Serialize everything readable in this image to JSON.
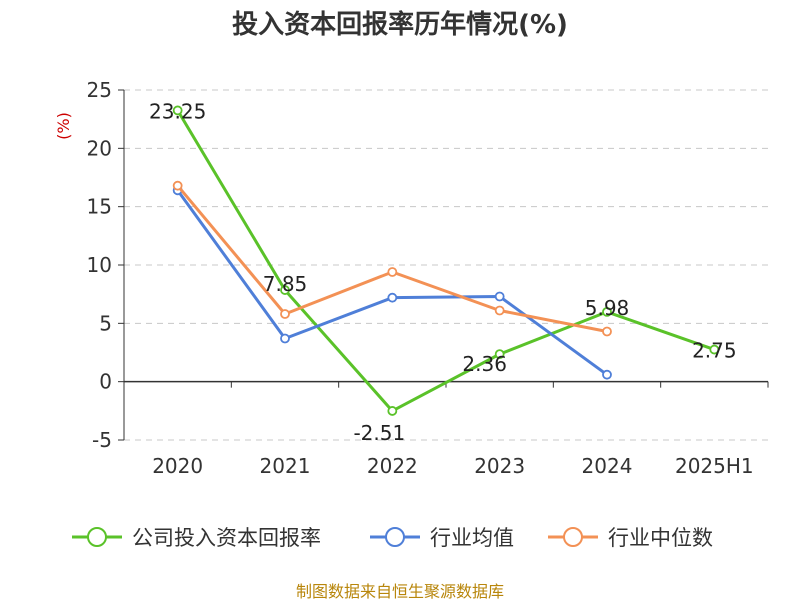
{
  "chart_data": {
    "type": "line",
    "title": "投入资本回报率历年情况(%)",
    "ylabel": "(%)",
    "xlabel": "",
    "categories": [
      "2020",
      "2021",
      "2022",
      "2023",
      "2024",
      "2025H1"
    ],
    "ylim": [
      -5,
      25
    ],
    "yticks": [
      -5,
      0,
      5,
      10,
      15,
      20,
      25
    ],
    "grid": true,
    "legend_position": "bottom",
    "series": [
      {
        "name": "公司投入资本回报率",
        "color": "#5ac229",
        "values": [
          23.25,
          7.85,
          -2.51,
          2.36,
          5.98,
          2.75
        ],
        "labels": [
          "23.25",
          "7.85",
          "-2.51",
          "2.36",
          "5.98",
          "2.75"
        ]
      },
      {
        "name": "行业均值",
        "color": "#4f7fd8",
        "values": [
          16.4,
          3.7,
          7.2,
          7.3,
          0.6,
          null
        ]
      },
      {
        "name": "行业中位数",
        "color": "#f39155",
        "values": [
          16.8,
          5.8,
          9.4,
          6.1,
          4.3,
          null
        ]
      }
    ]
  },
  "source": {
    "text": "制图数据来自恒生聚源数据库",
    "color": "#b8860b"
  },
  "colors": {
    "ylabel": "#cc0000",
    "axis": "#333333",
    "grid": "#c8c8c8",
    "text": "#333333"
  }
}
